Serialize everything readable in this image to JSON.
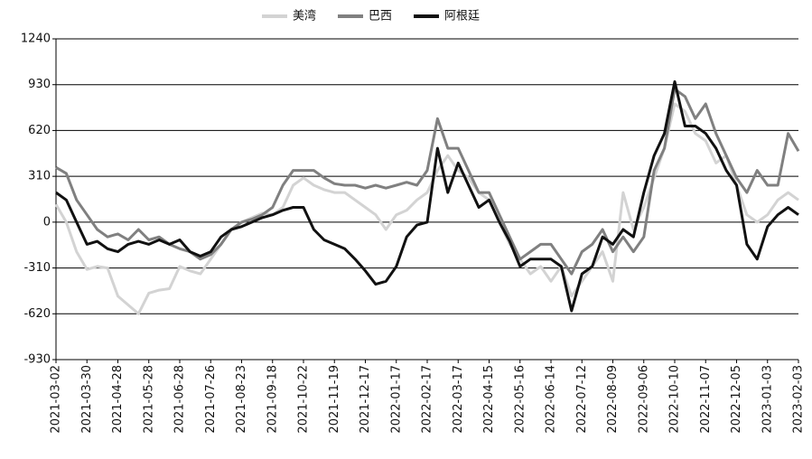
{
  "chart_data": {
    "type": "line",
    "categories": [
      "2021-03-02",
      null,
      null,
      "2021-03-30",
      null,
      null,
      "2021-04-28",
      null,
      null,
      "2021-05-28",
      null,
      null,
      "2021-06-28",
      null,
      null,
      "2021-07-26",
      null,
      null,
      "2021-08-23",
      null,
      null,
      "2021-09-18",
      null,
      null,
      "2021-10-22",
      null,
      null,
      "2021-11-19",
      null,
      null,
      "2021-12-17",
      null,
      null,
      "2022-01-17",
      null,
      null,
      "2022-02-17",
      null,
      null,
      "2022-03-17",
      null,
      null,
      "2022-04-15",
      null,
      null,
      "2022-05-16",
      null,
      null,
      "2022-06-14",
      null,
      null,
      "2022-07-12",
      null,
      null,
      "2022-08-09",
      null,
      null,
      "2022-09-06",
      null,
      null,
      "2022-10-10",
      null,
      null,
      "2022-11-07",
      null,
      null,
      "2022-12-05",
      null,
      null,
      "2023-01-03",
      null,
      null,
      "2023-02-03"
    ],
    "series": [
      {
        "name": "美湾",
        "color": "#d3d3d3",
        "values": [
          120,
          0,
          -200,
          -320,
          -300,
          -310,
          -500,
          -560,
          -620,
          -480,
          -460,
          -450,
          -300,
          -330,
          -350,
          -250,
          -150,
          -50,
          0,
          30,
          60,
          50,
          100,
          250,
          300,
          250,
          220,
          200,
          200,
          150,
          100,
          50,
          -50,
          50,
          80,
          150,
          200,
          350,
          450,
          350,
          300,
          200,
          150,
          0,
          -150,
          -250,
          -350,
          -300,
          -400,
          -300,
          -500,
          -400,
          -300,
          -200,
          -400,
          200,
          -50,
          100,
          300,
          500,
          800,
          750,
          600,
          550,
          400,
          450,
          250,
          50,
          0,
          50,
          150,
          200,
          150
        ]
      },
      {
        "name": "巴西",
        "color": "#808080",
        "values": [
          370,
          330,
          150,
          50,
          -50,
          -100,
          -80,
          -120,
          -50,
          -120,
          -100,
          -150,
          -180,
          -200,
          -250,
          -220,
          -150,
          -50,
          0,
          20,
          50,
          100,
          250,
          350,
          350,
          350,
          300,
          260,
          250,
          250,
          230,
          250,
          230,
          250,
          270,
          250,
          350,
          700,
          500,
          500,
          350,
          200,
          200,
          50,
          -100,
          -250,
          -200,
          -150,
          -150,
          -250,
          -350,
          -200,
          -150,
          -50,
          -200,
          -100,
          -200,
          -100,
          350,
          500,
          900,
          850,
          700,
          800,
          600,
          450,
          300,
          200,
          350,
          250,
          250,
          600,
          480
        ]
      },
      {
        "name": "阿根廷",
        "color": "#111111",
        "values": [
          200,
          150,
          0,
          -150,
          -130,
          -180,
          -200,
          -150,
          -130,
          -150,
          -120,
          -150,
          -120,
          -200,
          -230,
          -200,
          -100,
          -50,
          -30,
          0,
          30,
          50,
          80,
          100,
          100,
          -50,
          -120,
          -150,
          -180,
          -250,
          -330,
          -420,
          -400,
          -300,
          -100,
          -20,
          0,
          500,
          200,
          400,
          250,
          100,
          150,
          0,
          -130,
          -300,
          -250,
          -250,
          -250,
          -300,
          -600,
          -350,
          -300,
          -100,
          -150,
          -50,
          -100,
          200,
          450,
          600,
          950,
          650,
          650,
          600,
          500,
          350,
          250,
          -150,
          -250,
          -30,
          50,
          100,
          50
        ]
      }
    ],
    "ylim": [
      -930,
      1240
    ],
    "yticks": [
      1240,
      930,
      620,
      310,
      0,
      -310,
      -620,
      -930
    ],
    "grid": true,
    "legend": "top"
  }
}
